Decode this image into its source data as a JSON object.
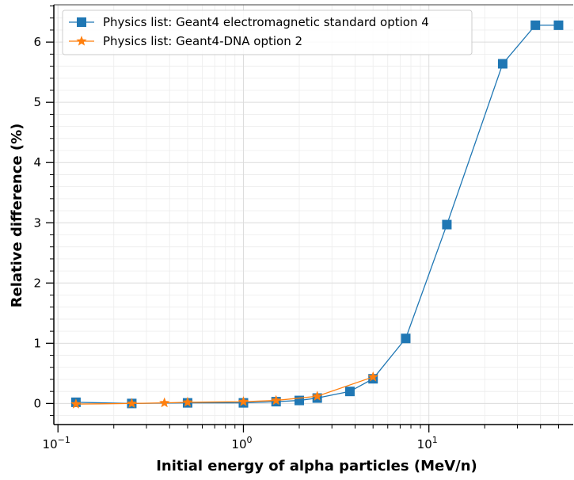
{
  "chart_data": {
    "type": "line",
    "title": "",
    "xlabel": "Initial energy of alpha particles (MeV/n)",
    "ylabel": "Relative difference (%)",
    "xscale": "log",
    "xlim": [
      0.095,
      60
    ],
    "ylim": [
      -0.35,
      6.62
    ],
    "grid": true,
    "legend": "top-left",
    "x_ticks": [
      {
        "base": "10",
        "exp": "−1",
        "value": 0.1
      },
      {
        "base": "10",
        "exp": "0",
        "value": 1
      },
      {
        "base": "10",
        "exp": "1",
        "value": 10
      }
    ],
    "y_ticks": [
      {
        "label": "0",
        "value": 0
      },
      {
        "label": "1",
        "value": 1
      },
      {
        "label": "2",
        "value": 2
      },
      {
        "label": "3",
        "value": 3
      },
      {
        "label": "4",
        "value": 4
      },
      {
        "label": "5",
        "value": 5
      },
      {
        "label": "6",
        "value": 6
      }
    ],
    "series": [
      {
        "name": "Physics list: Geant4 electromagnetic standard option 4",
        "color": "#1f77b4",
        "marker": "square",
        "x": [
          0.125,
          0.25,
          0.5,
          1.0,
          1.5,
          2.0,
          2.5,
          3.75,
          5.0,
          7.5,
          12.5,
          25,
          37.5,
          50
        ],
        "y": [
          0.02,
          0.0,
          0.01,
          0.01,
          0.03,
          0.05,
          0.09,
          0.2,
          0.41,
          1.08,
          2.97,
          5.64,
          6.28,
          6.28
        ]
      },
      {
        "name": "Physics list: Geant4-DNA option 2",
        "color": "#ff7f0e",
        "marker": "star",
        "x": [
          0.125,
          0.25,
          0.375,
          0.5,
          1.0,
          1.5,
          2.5,
          5.0
        ],
        "y": [
          -0.01,
          0.0,
          0.01,
          0.02,
          0.03,
          0.05,
          0.12,
          0.44
        ]
      }
    ]
  }
}
